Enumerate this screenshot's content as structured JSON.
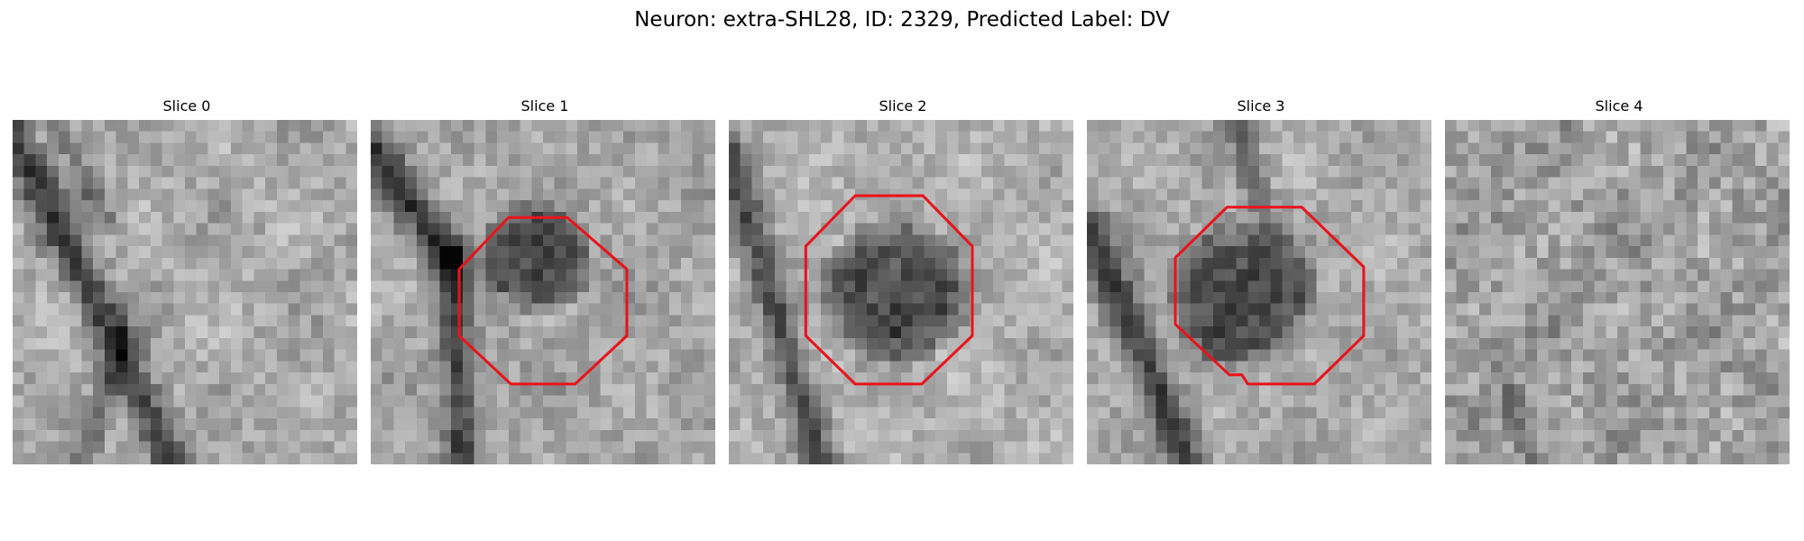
{
  "figure": {
    "title": "Neuron: extra-SHL28, ID: 2329, Predicted Label: DV",
    "outline_color": "#e8141b",
    "image_style": "grayscale pixelated EM patch, 30x30 pixels",
    "panels": [
      {
        "label": "Slice 0",
        "has_outline": false,
        "seed": 11
      },
      {
        "label": "Slice 1",
        "has_outline": true,
        "seed": 23
      },
      {
        "label": "Slice 2",
        "has_outline": true,
        "seed": 37
      },
      {
        "label": "Slice 3",
        "has_outline": true,
        "seed": 53
      },
      {
        "label": "Slice 4",
        "has_outline": false,
        "seed": 71
      }
    ]
  }
}
